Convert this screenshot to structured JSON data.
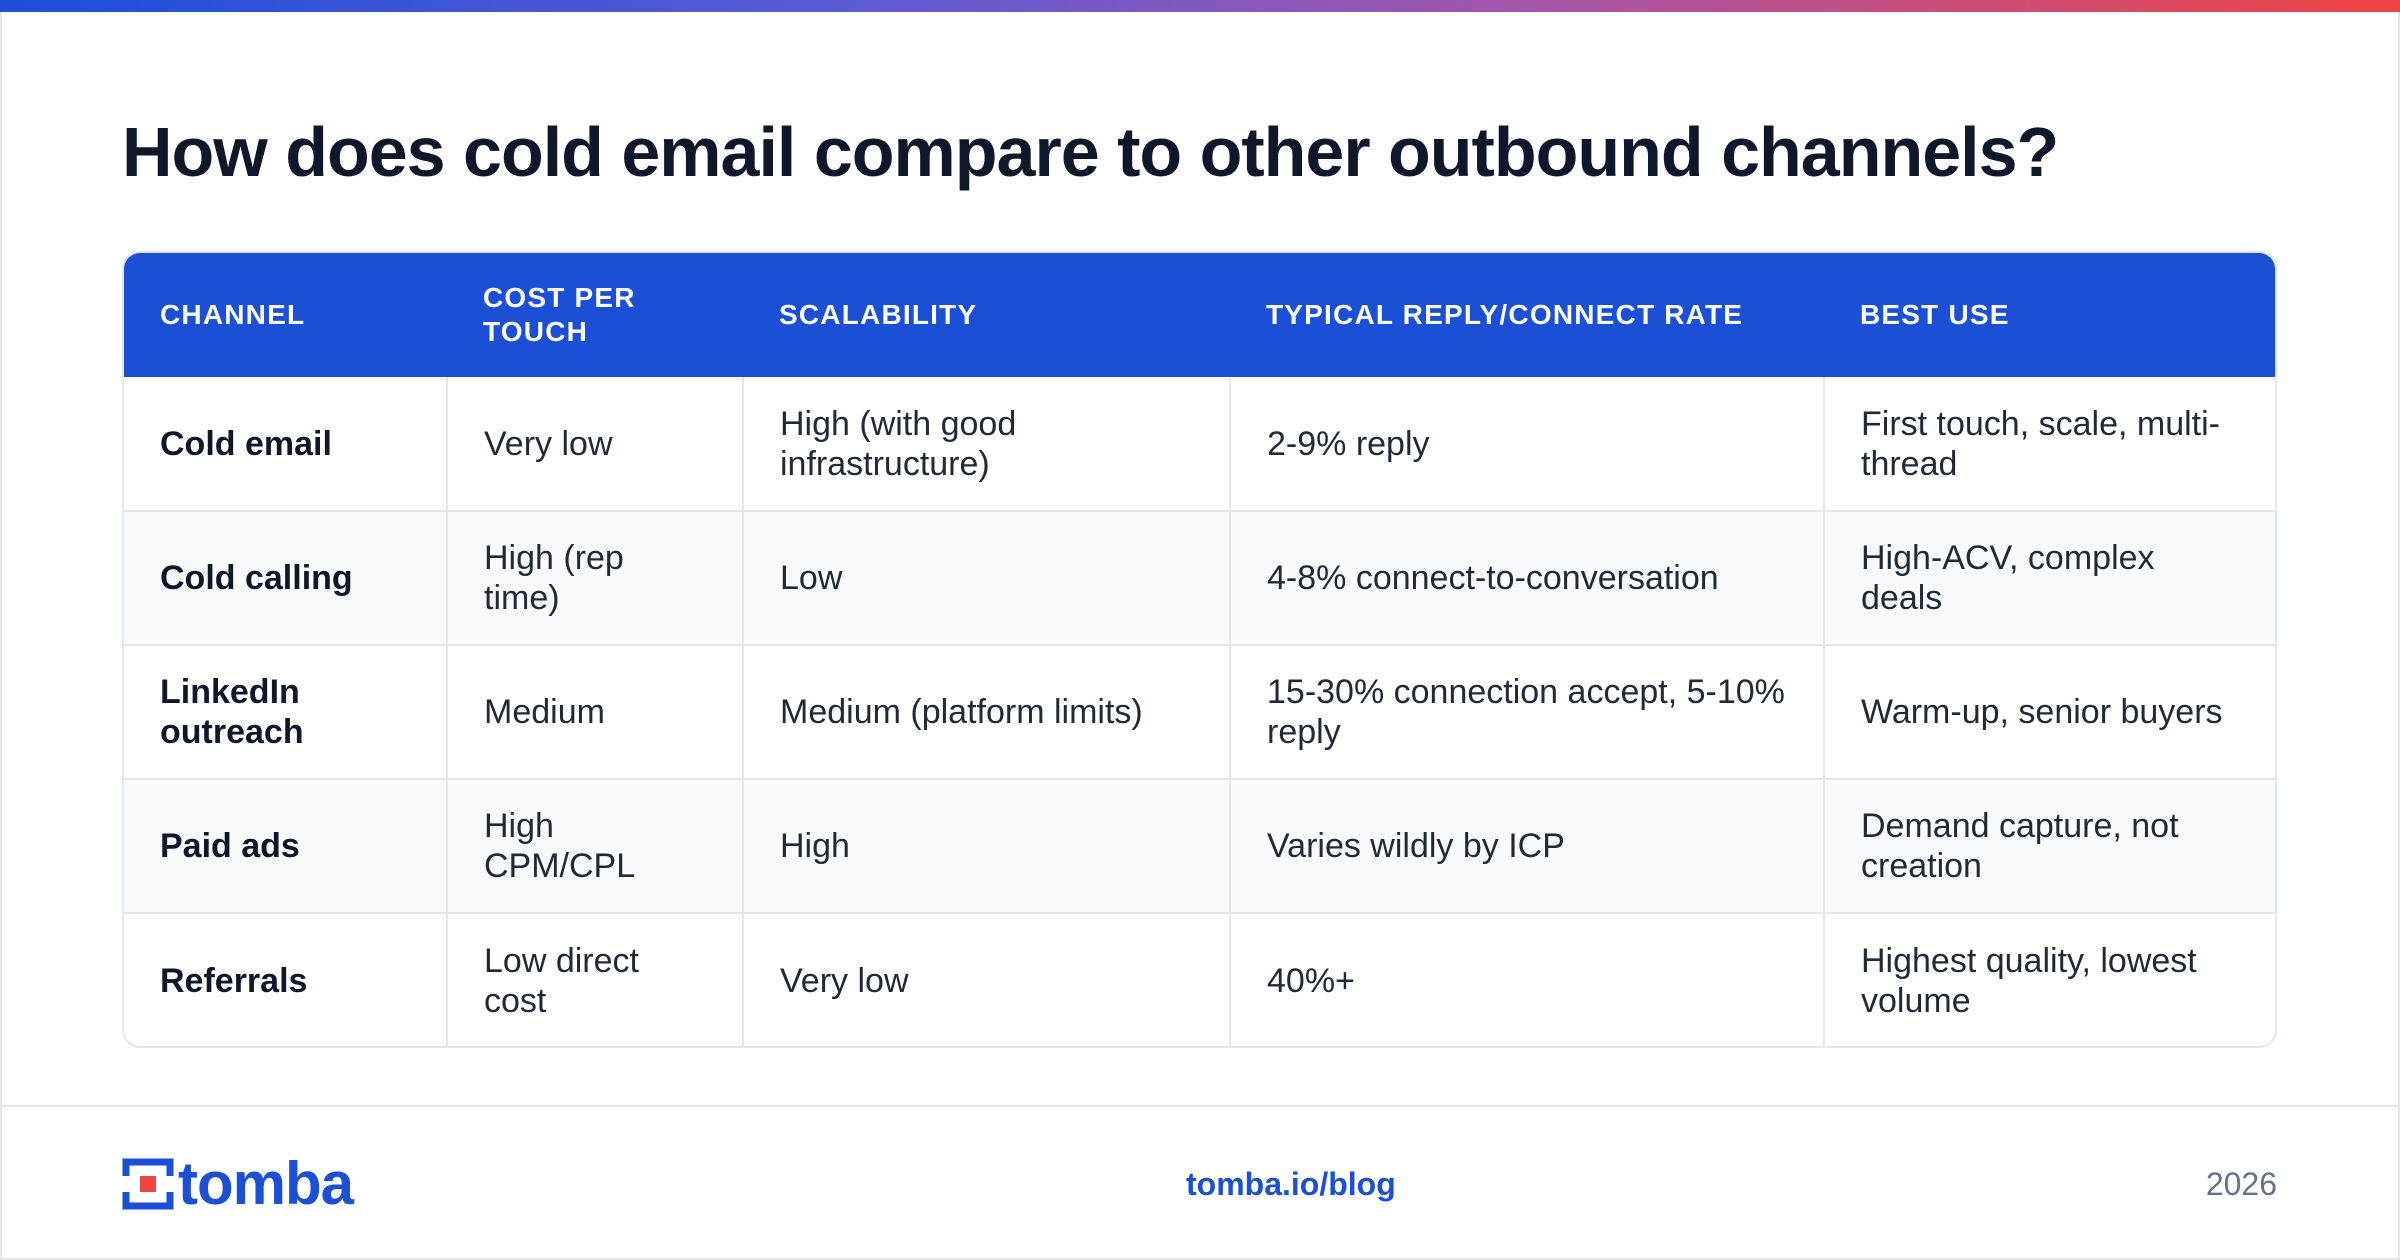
{
  "title": "How does cold email compare to other outbound channels?",
  "table": {
    "headers": [
      "CHANNEL",
      "COST PER TOUCH",
      "SCALABILITY",
      "TYPICAL REPLY/CONNECT RATE",
      "BEST USE"
    ],
    "rows": [
      [
        "Cold email",
        "Very low",
        "High (with good infrastructure)",
        "2-9% reply",
        "First touch, scale, multi-thread"
      ],
      [
        "Cold calling",
        "High (rep time)",
        "Low",
        "4-8% connect-to-conversation",
        "High-ACV, complex deals"
      ],
      [
        "LinkedIn outreach",
        "Medium",
        "Medium (platform limits)",
        "15-30% connection accept, 5-10% reply",
        "Warm-up, senior buyers"
      ],
      [
        "Paid ads",
        "High CPM/CPL",
        "High",
        "Varies wildly by ICP",
        "Demand capture, not creation"
      ],
      [
        "Referrals",
        "Low direct cost",
        "Very low",
        "40%+",
        "Highest quality, lowest volume"
      ]
    ]
  },
  "footer": {
    "logo_text": "tomba",
    "logo_icon": "tomba-logo-mark",
    "link": "tomba.io/blog",
    "year": "2026"
  },
  "colors": {
    "accent": "#1a4fd6",
    "logo_red": "#ef4444",
    "gradient": [
      "#1d4ed8",
      "#a855a7",
      "#ef4444"
    ]
  }
}
